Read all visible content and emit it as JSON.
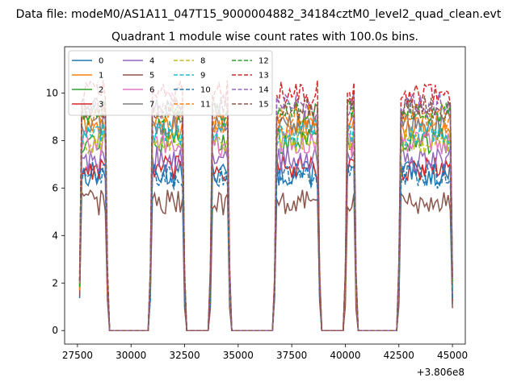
{
  "chart_data": {
    "type": "line",
    "suptitle": "Data file: modeM0/AS1A11_047T15_9000004882_34184cztM0_level2_quad_clean.evt",
    "title": "Quadrant 1 module wise count rates with 100.0s bins.",
    "xlabel": "",
    "ylabel": "",
    "x_offset_label": "+3.806e8",
    "x_ticks": [
      27500,
      30000,
      32500,
      35000,
      37500,
      40000,
      42500,
      45000
    ],
    "y_ticks": [
      0,
      2,
      4,
      6,
      8,
      10
    ],
    "xlim": [
      26900,
      45600
    ],
    "ylim": [
      -0.57,
      11.95
    ],
    "grid": false,
    "legend_position": "top-left",
    "legend_columns": 4,
    "segments": [
      {
        "start": 27600,
        "end": 28900
      },
      {
        "start": 30900,
        "end": 32500
      },
      {
        "start": 33700,
        "end": 34600
      },
      {
        "start": 36700,
        "end": 38800
      },
      {
        "start": 40000,
        "end": 40500
      },
      {
        "start": 42500,
        "end": 45000
      }
    ],
    "series": [
      {
        "name": "0",
        "color": "#1f77b4",
        "dash": "solid",
        "level": 6.6
      },
      {
        "name": "1",
        "color": "#ff7f0e",
        "dash": "solid",
        "level": 8.6
      },
      {
        "name": "2",
        "color": "#2ca02c",
        "dash": "solid",
        "level": 8.0
      },
      {
        "name": "3",
        "color": "#d62728",
        "dash": "solid",
        "level": 6.8
      },
      {
        "name": "4",
        "color": "#9467bd",
        "dash": "solid",
        "level": 7.2
      },
      {
        "name": "5",
        "color": "#8c564b",
        "dash": "solid",
        "level": 5.4
      },
      {
        "name": "6",
        "color": "#e377c2",
        "dash": "solid",
        "level": 7.9
      },
      {
        "name": "7",
        "color": "#7f7f7f",
        "dash": "solid",
        "level": 8.7
      },
      {
        "name": "8",
        "color": "#bcbd22",
        "dash": "dashed",
        "level": 8.0
      },
      {
        "name": "9",
        "color": "#17becf",
        "dash": "dashed",
        "level": 8.3
      },
      {
        "name": "10",
        "color": "#1f77b4",
        "dash": "dashed",
        "level": 6.5
      },
      {
        "name": "11",
        "color": "#ff7f0e",
        "dash": "dashed",
        "level": 9.0
      },
      {
        "name": "12",
        "color": "#2ca02c",
        "dash": "dashed",
        "level": 9.2
      },
      {
        "name": "13",
        "color": "#d62728",
        "dash": "dashed",
        "level": 10.0
      },
      {
        "name": "14",
        "color": "#9467bd",
        "dash": "dashed",
        "level": 9.5
      },
      {
        "name": "15",
        "color": "#8c564b",
        "dash": "dashed",
        "level": 9.4
      }
    ]
  }
}
